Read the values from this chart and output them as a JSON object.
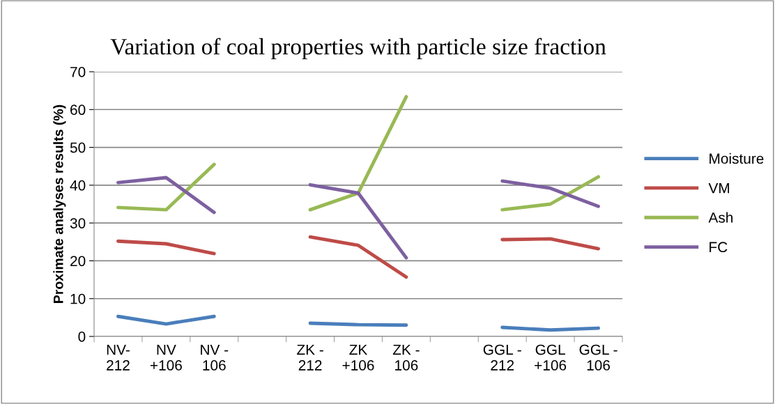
{
  "chart_data": {
    "type": "line",
    "title": "Variation of coal properties with particle size fraction",
    "ylabel": "Proximate analyses results (%)",
    "categories": [
      "NV-\n212",
      "NV\n+106",
      "NV -\n106",
      null,
      "ZK -\n212",
      "ZK\n+106",
      "ZK -\n106",
      null,
      "GGL -\n212",
      "GGL\n+106",
      "GGL -\n106"
    ],
    "series": [
      {
        "name": "Moisture",
        "color": "#4a7ebb",
        "values": [
          5.3,
          3.3,
          5.3,
          null,
          3.5,
          3.1,
          3.0,
          null,
          2.4,
          1.7,
          2.2
        ]
      },
      {
        "name": "VM",
        "color": "#be4b48",
        "values": [
          25.2,
          24.5,
          21.9,
          null,
          26.3,
          24.1,
          15.7,
          null,
          25.6,
          25.8,
          23.2
        ]
      },
      {
        "name": "Ash",
        "color": "#98b954",
        "values": [
          34.1,
          33.5,
          45.5,
          null,
          33.5,
          37.9,
          63.4,
          null,
          33.5,
          35.0,
          42.2
        ]
      },
      {
        "name": "FC",
        "color": "#7d60a0",
        "values": [
          40.7,
          42.0,
          32.8,
          null,
          40.1,
          37.9,
          20.8,
          null,
          41.1,
          39.2,
          34.4
        ]
      }
    ],
    "ylim": [
      0,
      70
    ],
    "yticks": [
      0,
      10,
      20,
      30,
      40,
      50,
      60,
      70
    ],
    "grid": "y",
    "legend": "right",
    "marker": "none",
    "line_style": "solid"
  }
}
